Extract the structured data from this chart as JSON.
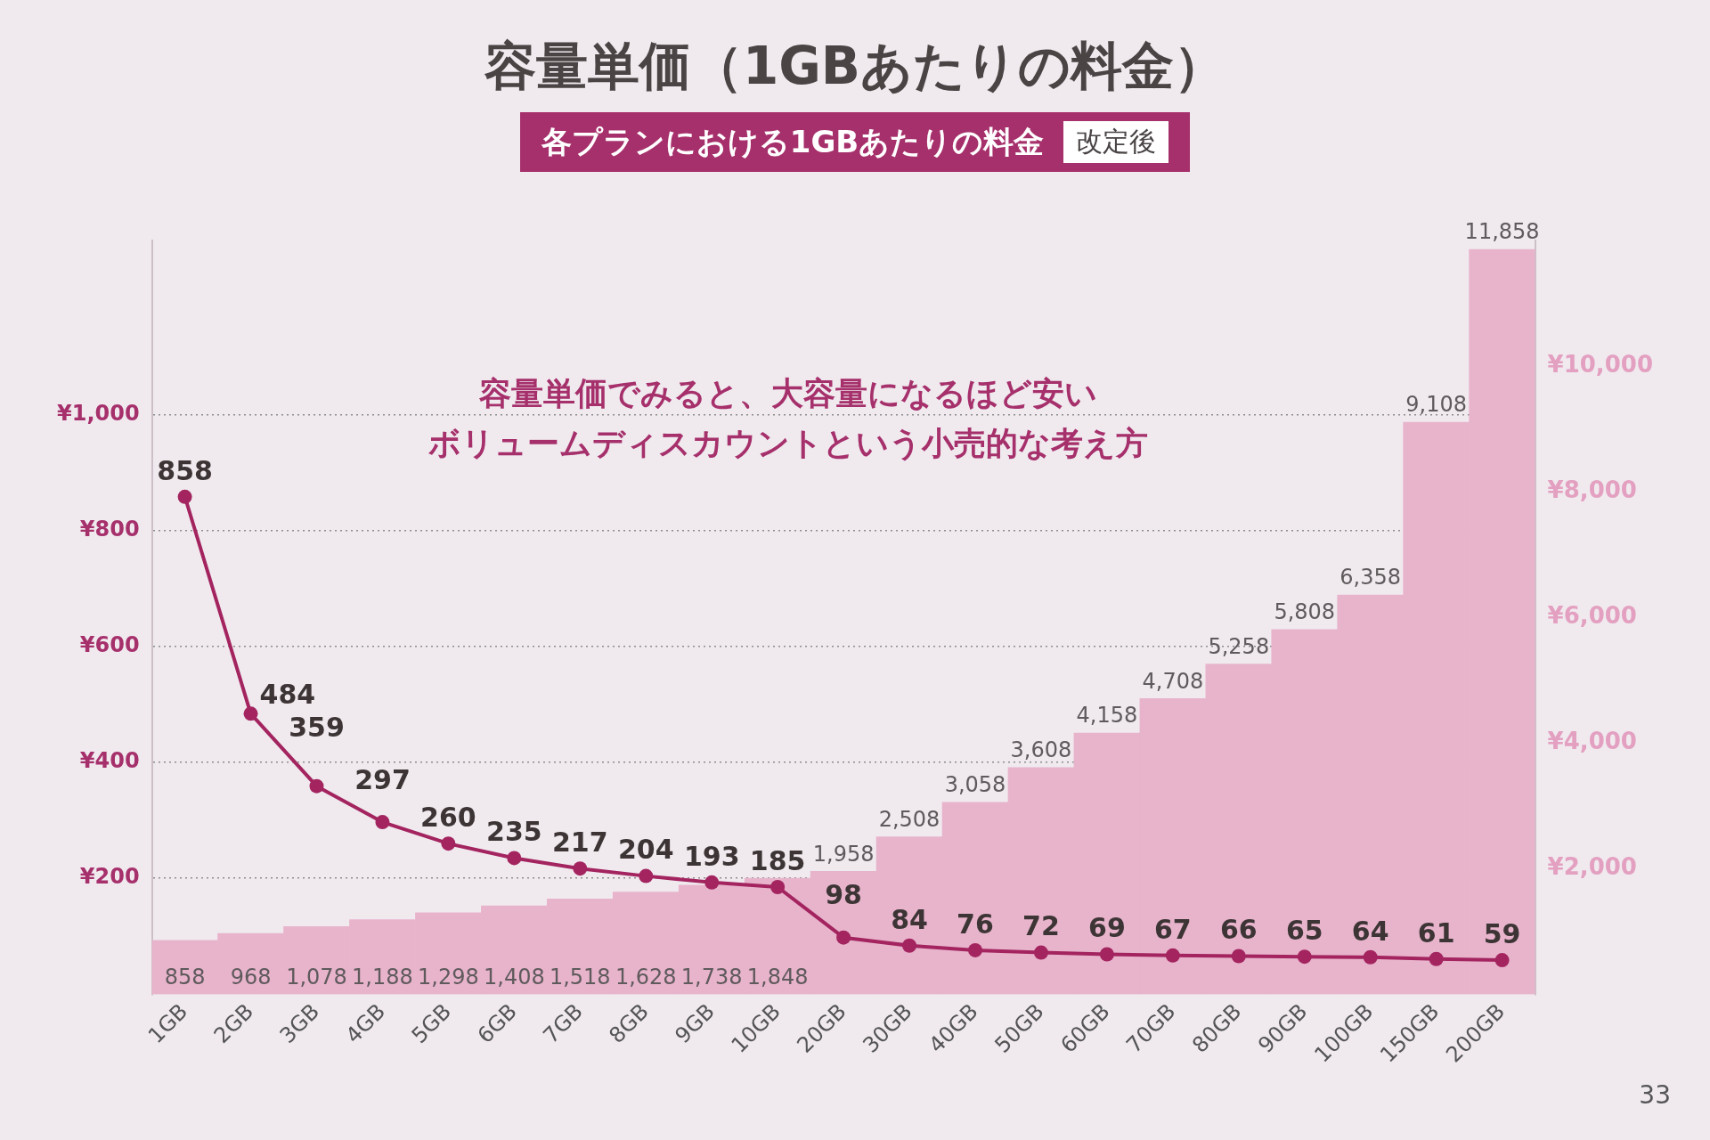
{
  "chart_data": {
    "type": "bar",
    "title": "容量単価（1GBあたりの料金）",
    "subtitle": "各プランにおける1GBあたりの料金",
    "annotations": [
      "改定後",
      "容量単価でみると、大容量になるほど安い",
      "ボリュームディスカウントという小売的な考え方",
      "33"
    ],
    "categories": [
      "1GB",
      "2GB",
      "3GB",
      "4GB",
      "5GB",
      "6GB",
      "7GB",
      "8GB",
      "9GB",
      "10GB",
      "20GB",
      "30GB",
      "40GB",
      "50GB",
      "60GB",
      "70GB",
      "80GB",
      "90GB",
      "100GB",
      "150GB",
      "200GB"
    ],
    "series": [
      {
        "axis": "y2",
        "color": "#e8b4cc",
        "values": [
          858,
          968,
          1078,
          1188,
          1298,
          1408,
          1518,
          1628,
          1738,
          1848,
          1958,
          2508,
          3058,
          3608,
          4158,
          4708,
          5258,
          5808,
          6358,
          9108,
          11858
        ],
        "value_labels": [
          "858",
          "968",
          "1,078",
          "1,188",
          "1,298",
          "1,408",
          "1,518",
          "1,628",
          "1,738",
          "1,848",
          "1,958",
          "2,508",
          "3,058",
          "3,608",
          "4,158",
          "4,708",
          "5,258",
          "5,808",
          "6,358",
          "9,108",
          "11,858"
        ]
      },
      {
        "type": "line",
        "axis": "y",
        "color": "#a3245f",
        "values": [
          858,
          484,
          359,
          297,
          260,
          235,
          217,
          204,
          193,
          185,
          98,
          84,
          76,
          72,
          69,
          67,
          66,
          65,
          64,
          61,
          59
        ]
      }
    ],
    "ylim": [
      0,
      1300
    ],
    "yticks": [
      {
        "value": 200,
        "label": "¥200"
      },
      {
        "value": 400,
        "label": "¥400"
      },
      {
        "value": 600,
        "label": "¥600"
      },
      {
        "value": 800,
        "label": "¥800"
      },
      {
        "value": 1000,
        "label": "¥1,000"
      }
    ],
    "y2lim": [
      0,
      12000
    ],
    "y2ticks": [
      {
        "value": 2000,
        "label": "¥2,000"
      },
      {
        "value": 4000,
        "label": "¥4,000"
      },
      {
        "value": 6000,
        "label": "¥6,000"
      },
      {
        "value": 8000,
        "label": "¥8,000"
      },
      {
        "value": 10000,
        "label": "¥10,000"
      }
    ],
    "grid": "y",
    "marker": "circle",
    "line_style": "solid",
    "data_labels": true
  }
}
